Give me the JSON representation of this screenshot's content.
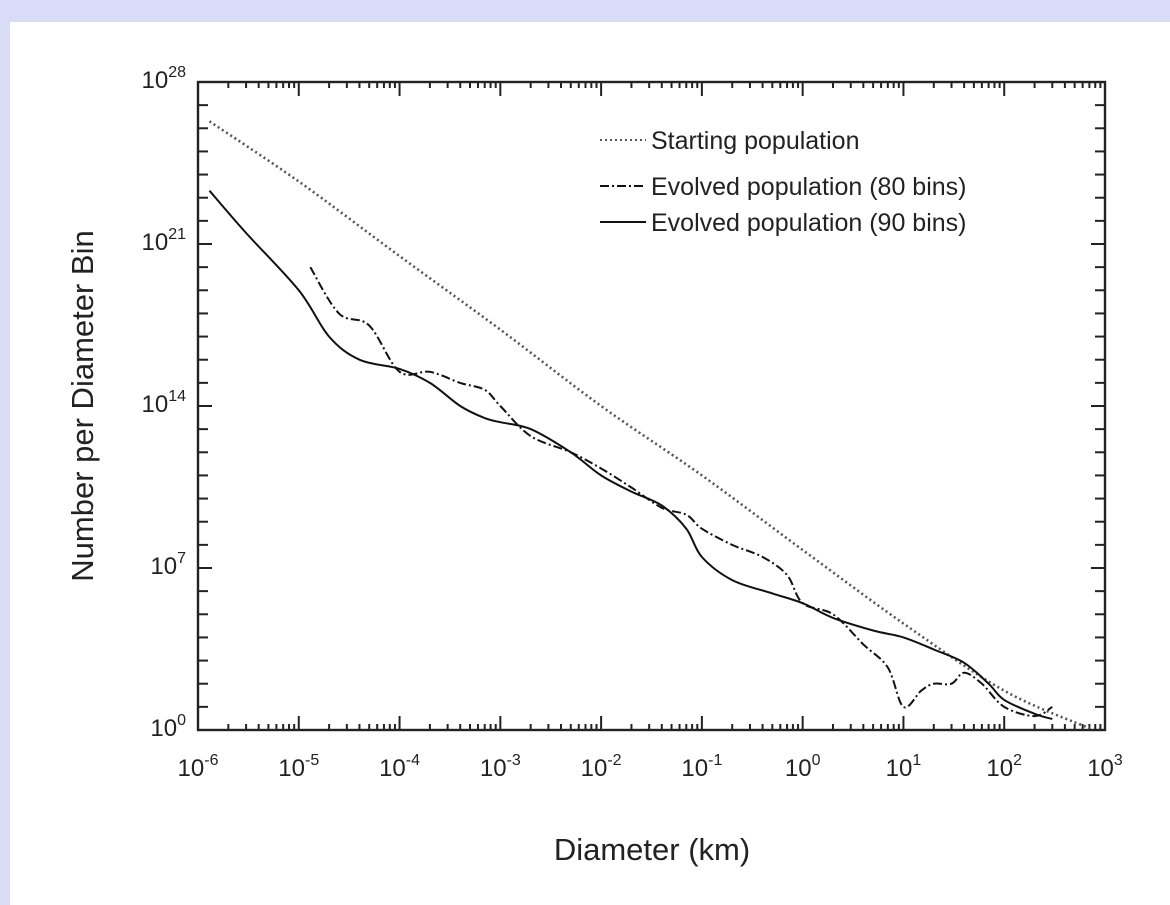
{
  "chart_data": {
    "type": "line",
    "xlabel": "Diameter (km)",
    "ylabel": "Number per Diameter Bin",
    "x_scale": "log",
    "y_scale": "log",
    "xlim": [
      1e-06,
      1000
    ],
    "ylim": [
      1,
      1e+28
    ],
    "x_ticks": [
      {
        "value": 1e-06,
        "base": "10",
        "exp": "-6"
      },
      {
        "value": 1e-05,
        "base": "10",
        "exp": "-5"
      },
      {
        "value": 0.0001,
        "base": "10",
        "exp": "-4"
      },
      {
        "value": 0.001,
        "base": "10",
        "exp": "-3"
      },
      {
        "value": 0.01,
        "base": "10",
        "exp": "-2"
      },
      {
        "value": 0.1,
        "base": "10",
        "exp": "-1"
      },
      {
        "value": 1,
        "base": "10",
        "exp": "0"
      },
      {
        "value": 10,
        "base": "10",
        "exp": "1"
      },
      {
        "value": 100,
        "base": "10",
        "exp": "2"
      },
      {
        "value": 1000,
        "base": "10",
        "exp": "3"
      }
    ],
    "y_ticks": [
      {
        "value": 1,
        "base": "10",
        "exp": "0"
      },
      {
        "value": 10000000.0,
        "base": "10",
        "exp": "7"
      },
      {
        "value": 100000000000000.0,
        "base": "10",
        "exp": "14"
      },
      {
        "value": 1e+21,
        "base": "10",
        "exp": "21"
      },
      {
        "value": 1e+28,
        "base": "10",
        "exp": "28"
      }
    ],
    "grid": false,
    "legend_position": "top-right",
    "series": [
      {
        "name": "Starting population",
        "style": "dotted",
        "color": "#555555",
        "x": [
          1.3e-06,
          1e-05,
          0.0001,
          0.001,
          0.01,
          0.1,
          1,
          10,
          100,
          700
        ],
        "y": [
          2e+26,
          5e+23,
          3e+20,
          2e+17,
          100000000000000.0,
          100000000000.0,
          60000000.0,
          40000.0,
          50.0,
          1.2
        ]
      },
      {
        "name": "Evolved population (80 bins)",
        "style": "dashdot",
        "color": "#111111",
        "x": [
          1.3e-05,
          2.5e-05,
          5e-05,
          0.0001,
          0.0002,
          0.0004,
          0.0007,
          0.001,
          0.002,
          0.005,
          0.01,
          0.02,
          0.04,
          0.07,
          0.1,
          0.2,
          0.4,
          0.7,
          1,
          2,
          4,
          7,
          10,
          15,
          20,
          30,
          40,
          60,
          100,
          200,
          300
        ],
        "y": [
          1e+20,
          1e+18,
          3e+17,
          3000000000000000.0,
          3000000000000000.0,
          1000000000000000.0,
          500000000000000.0,
          100000000000000.0,
          5000000000000.0,
          1000000000000.0,
          200000000000.0,
          30000000000.0,
          4000000000.0,
          2000000000.0,
          500000000.0,
          100000000.0,
          30000000.0,
          5000000.0,
          300000.0,
          100000.0,
          5000.0,
          500.0,
          10.0,
          50.0,
          100.0,
          100.0,
          300.0,
          100.0,
          10.0,
          4.0,
          10.0
        ]
      },
      {
        "name": "Evolved population (90 bins)",
        "style": "solid",
        "color": "#111111",
        "x": [
          1.3e-06,
          3e-06,
          1e-05,
          2e-05,
          4e-05,
          0.0001,
          0.0002,
          0.0004,
          0.0007,
          0.001,
          0.002,
          0.005,
          0.01,
          0.02,
          0.04,
          0.07,
          0.1,
          0.2,
          0.5,
          1,
          2,
          5,
          10.0,
          20.0,
          40.0,
          70.0,
          100.0,
          200.0,
          300.0
        ],
        "y": [
          2e+23,
          3e+21,
          1e+19,
          1e+17,
          1e+16,
          4000000000000000.0,
          1000000000000000.0,
          100000000000000.0,
          30000000000000.0,
          20000000000000.0,
          10000000000000.0,
          1000000000000.0,
          100000000000.0,
          20000000000.0,
          5000000000.0,
          500000000.0,
          30000000.0,
          3000000.0,
          800000.0,
          300000.0,
          70000.0,
          20000.0,
          10000.0,
          3000.0,
          800.0,
          100.0,
          20.0,
          5.0,
          3.0
        ]
      }
    ]
  }
}
